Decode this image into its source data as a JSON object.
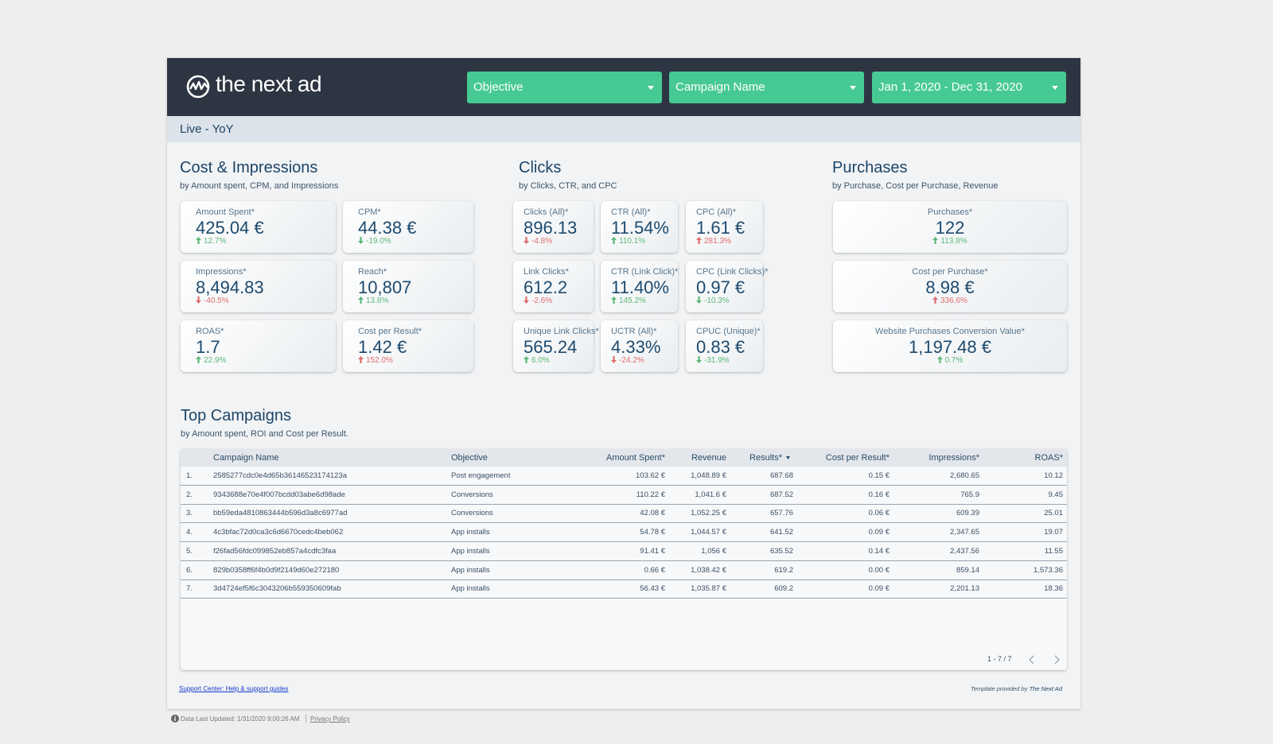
{
  "header": {
    "logo": "the next ad",
    "filters": [
      "Objective",
      "Campaign Name",
      "Jan 1, 2020 - Dec 31, 2020"
    ]
  },
  "page_title": "Live - YoY",
  "sections": [
    {
      "title": "Cost & Impressions",
      "subtitle": "by Amount spent, CPM, and Impressions",
      "cards": [
        {
          "label": "Amount Spent*",
          "value": "425.04 €",
          "change": "12.7%",
          "trend": "up",
          "color": "#5cb87a"
        },
        {
          "label": "CPM*",
          "value": "44.38 €",
          "change": "-19.0%",
          "trend": "down",
          "color": "#5cb87a"
        },
        {
          "label": "Impressions*",
          "value": "8,494.83",
          "change": "-40.5%",
          "trend": "down",
          "color": "#e06c6c"
        },
        {
          "label": "Reach*",
          "value": "10,807",
          "change": "13.8%",
          "trend": "up",
          "color": "#5cb87a"
        },
        {
          "label": "ROAS*",
          "value": "1.7",
          "change": "22.9%",
          "trend": "up",
          "color": "#5cb87a"
        },
        {
          "label": "Cost per Result*",
          "value": "1.42 €",
          "change": "152.0%",
          "trend": "up",
          "color": "#e06c6c"
        }
      ]
    },
    {
      "title": "Clicks",
      "subtitle": "by Clicks, CTR, and CPC",
      "cards": [
        {
          "label": "Clicks (All)*",
          "value": "896.13",
          "change": "-4.8%",
          "trend": "down",
          "color": "#e06c6c"
        },
        {
          "label": "CTR (All)*",
          "value": "11.54%",
          "change": "110.1%",
          "trend": "up",
          "color": "#5cb87a"
        },
        {
          "label": "CPC (All)*",
          "value": "1.61 €",
          "change": "281.3%",
          "trend": "up",
          "color": "#e06c6c"
        },
        {
          "label": "Link Clicks*",
          "value": "612.2",
          "change": "-2.6%",
          "trend": "down",
          "color": "#e06c6c"
        },
        {
          "label": "CTR (Link Click)*",
          "value": "11.40%",
          "change": "145.2%",
          "trend": "up",
          "color": "#5cb87a"
        },
        {
          "label": "CPC (Link Clicks)*",
          "value": "0.97 €",
          "change": "-10.3%",
          "trend": "down",
          "color": "#5cb87a"
        },
        {
          "label": "Unique Link Clicks*",
          "value": "565.24",
          "change": "6.0%",
          "trend": "up",
          "color": "#5cb87a"
        },
        {
          "label": "UCTR (All)*",
          "value": "4.33%",
          "change": "-24.2%",
          "trend": "down",
          "color": "#e06c6c"
        },
        {
          "label": "CPUC (Unique)*",
          "value": "0.83 €",
          "change": "-31.9%",
          "trend": "down",
          "color": "#5cb87a"
        }
      ]
    },
    {
      "title": "Purchases",
      "subtitle": "by Purchase, Cost per Purchase, Revenue",
      "cards": [
        {
          "label": "Purchases*",
          "value": "122",
          "change": "113.8%",
          "trend": "up",
          "color": "#5cb87a"
        },
        {
          "label": "Cost per Purchase*",
          "value": "8.98 €",
          "change": "336.6%",
          "trend": "up",
          "color": "#e06c6c"
        },
        {
          "label": "Website Purchases Conversion Value*",
          "value": "1,197.48 €",
          "change": "0.7%",
          "trend": "up",
          "color": "#5cb87a"
        }
      ]
    }
  ],
  "table": {
    "title": "Top Campaigns",
    "subtitle": "by Amount spent, ROI and Cost per Result.",
    "columns": [
      "Campaign Name",
      "Objective",
      "Amount Spent*",
      "Revenue",
      "Results*",
      "Cost per Result*",
      "Impressions*",
      "ROAS*"
    ],
    "sort_column": 4,
    "sort_order": "desc",
    "rows": [
      [
        "1.",
        "2585277cdc0e4d65b36146523174123a",
        "Post engagement",
        "103.62 €",
        "1,048.89 €",
        "687.68",
        "0.15 €",
        "2,680.65",
        "10.12"
      ],
      [
        "2.",
        "9343688e70e4f007bcdd03abe6d98ade",
        "Conversions",
        "110.22 €",
        "1,041.6 €",
        "687.52",
        "0.16 €",
        "765.9",
        "9.45"
      ],
      [
        "3.",
        "bb59eda4810863444b596d3a8c6977ad",
        "Conversions",
        "42.08 €",
        "1,052.25 €",
        "657.76",
        "0.06 €",
        "609.39",
        "25.01"
      ],
      [
        "4.",
        "4c3bfac72d0ca3c6d6670cedc4beb062",
        "App installs",
        "54.78 €",
        "1,044.57 €",
        "641.52",
        "0.09 €",
        "2,347.65",
        "19.07"
      ],
      [
        "5.",
        "f26fad56fdc099852eb857a4cdfc3faa",
        "App installs",
        "91.41 €",
        "1,056 €",
        "635.52",
        "0.14 €",
        "2,437.56",
        "11.55"
      ],
      [
        "6.",
        "829b0358ff6f4b0d9f2149d60e272180",
        "App installs",
        "0.66 €",
        "1,038.42 €",
        "619.2",
        "0.00 €",
        "859.14",
        "1,573.36"
      ],
      [
        "7.",
        "3d4724ef5f6c3043206b559350609fab",
        "App installs",
        "56.43 €",
        "1,035.87 €",
        "609.2",
        "0.09 €",
        "2,201.13",
        "18.36"
      ]
    ],
    "pagination": "1 - 7 / 7"
  },
  "footer": {
    "support_link": "Support Center: Help & support guides",
    "template_text": "Template provided by",
    "template_brand": "The Next Ad",
    "last_updated": "Data Last Updated: 1/31/2020 9:00:26 AM",
    "privacy_link": "Privacy Policy"
  }
}
